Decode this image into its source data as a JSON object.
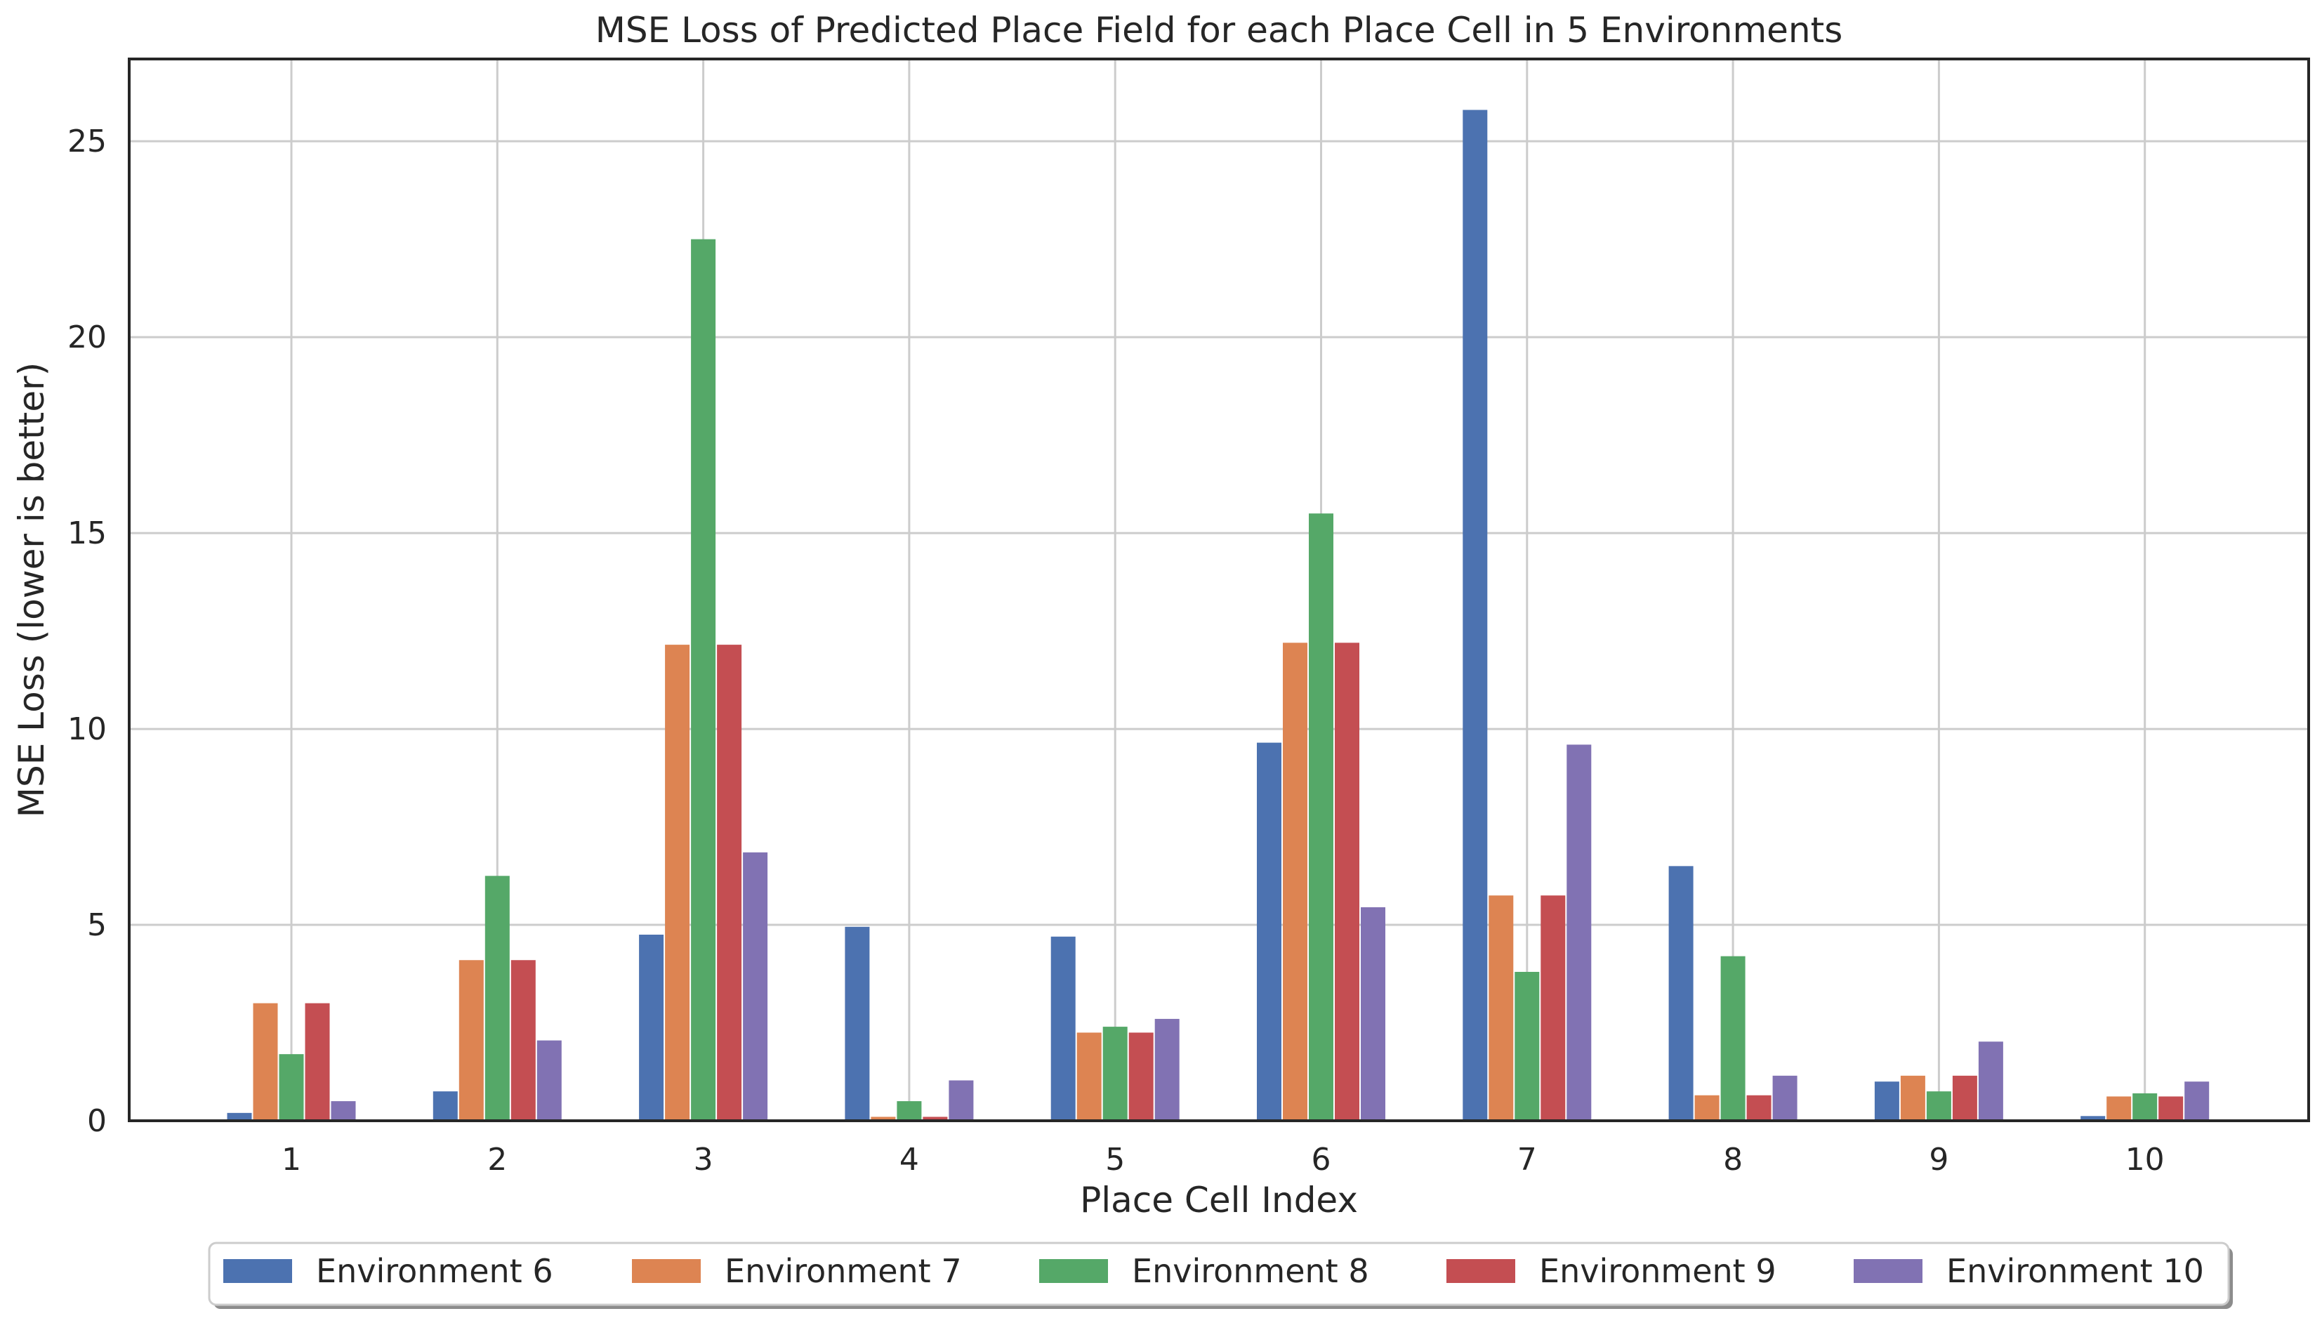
{
  "chart_data": {
    "type": "bar",
    "title": "MSE Loss of Predicted Place Field for each Place Cell in 5 Environments",
    "xlabel": "Place Cell Index",
    "ylabel": "MSE Loss (lower is better)",
    "categories": [
      "1",
      "2",
      "3",
      "4",
      "5",
      "6",
      "7",
      "8",
      "9",
      "10"
    ],
    "ylim": [
      0,
      27.1
    ],
    "yticks": [
      0,
      5,
      10,
      15,
      20,
      25
    ],
    "grid": true,
    "legend_position": "bottom-center",
    "series": [
      {
        "name": "Environment 6",
        "color": "#4c72b0",
        "values": [
          0.2,
          0.75,
          4.75,
          4.95,
          4.7,
          9.65,
          25.8,
          6.5,
          1.0,
          0.12
        ]
      },
      {
        "name": "Environment 7",
        "color": "#dd8452",
        "values": [
          3.0,
          4.1,
          12.15,
          0.1,
          2.25,
          12.2,
          5.75,
          0.65,
          1.15,
          0.62
        ]
      },
      {
        "name": "Environment 8",
        "color": "#55a868",
        "values": [
          1.7,
          6.25,
          22.5,
          0.5,
          2.4,
          15.5,
          3.8,
          4.2,
          0.75,
          0.7
        ]
      },
      {
        "name": "Environment 9",
        "color": "#c44e52",
        "values": [
          3.0,
          4.1,
          12.15,
          0.1,
          2.25,
          12.2,
          5.75,
          0.65,
          1.15,
          0.62
        ]
      },
      {
        "name": "Environment 10",
        "color": "#8172b3",
        "values": [
          0.5,
          2.05,
          6.85,
          1.03,
          2.6,
          5.45,
          9.6,
          1.15,
          2.02,
          1.0
        ]
      }
    ]
  }
}
